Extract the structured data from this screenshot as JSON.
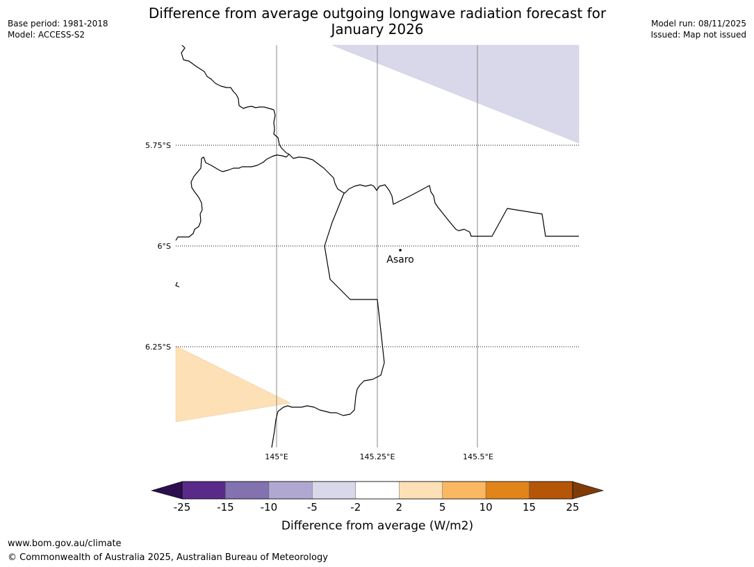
{
  "header": {
    "base_period": "Base period: 1981-2018",
    "model": "Model: ACCESS-S2",
    "title_line1": "Difference from average outgoing longwave radiation forecast for",
    "title_line2": "January 2026",
    "model_run": "Model run: 08/11/2025",
    "issued": "Issued: Map not issued"
  },
  "map": {
    "lat_labels": [
      "5.75°S",
      "6°S",
      "6.25°S"
    ],
    "lon_labels": [
      "145°E",
      "145.25°E",
      "145.5°E"
    ],
    "place": {
      "name": "Asaro",
      "lat": -6.01,
      "lon": 145.3
    },
    "anomaly_regions": [
      {
        "category": "-2 to -5",
        "color": "#d8d8ea"
      },
      {
        "category": "2 to 5",
        "color": "#fde0b6"
      }
    ]
  },
  "colorbar": {
    "label": "Difference from average (W/m2)",
    "ticks": [
      "-25",
      "-15",
      "-10",
      "-5",
      "-2",
      "2",
      "5",
      "10",
      "15",
      "25"
    ],
    "colors": [
      "#5a2a8a",
      "#8272b0",
      "#b1a8d2",
      "#d8d8ea",
      "#ffffff",
      "#fde0b6",
      "#fbb862",
      "#e18419",
      "#b45508"
    ],
    "extend_low_color": "#2d0f4e",
    "extend_high_color": "#7f3b08"
  },
  "footer": {
    "url": "www.bom.gov.au/climate",
    "copyright": "© Commonwealth of Australia 2025, Australian Bureau of Meteorology"
  }
}
